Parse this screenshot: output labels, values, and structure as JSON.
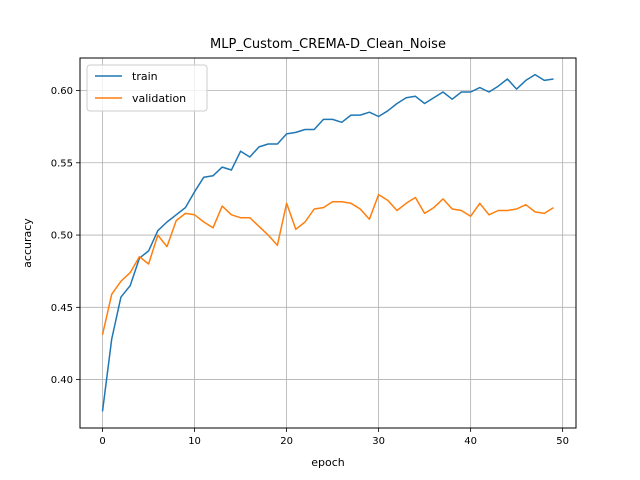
{
  "chart_data": {
    "type": "line",
    "title": "MLP_Custom_CREMA-D_Clean_Noise",
    "xlabel": "epoch",
    "ylabel": "accuracy",
    "xlim": [
      -2.45,
      51.45
    ],
    "ylim": [
      0.3665,
      0.6225
    ],
    "xticks": [
      0,
      10,
      20,
      30,
      40,
      50
    ],
    "yticks": [
      0.4,
      0.45,
      0.5,
      0.55,
      0.6
    ],
    "xtick_labels": [
      "0",
      "10",
      "20",
      "30",
      "40",
      "50"
    ],
    "ytick_labels": [
      "0.40",
      "0.45",
      "0.50",
      "0.55",
      "0.60"
    ],
    "grid": true,
    "legend_position": "upper-left",
    "x": [
      0,
      1,
      2,
      3,
      4,
      5,
      6,
      7,
      8,
      9,
      10,
      11,
      12,
      13,
      14,
      15,
      16,
      17,
      18,
      19,
      20,
      21,
      22,
      23,
      24,
      25,
      26,
      27,
      28,
      29,
      30,
      31,
      32,
      33,
      34,
      35,
      36,
      37,
      38,
      39,
      40,
      41,
      42,
      43,
      44,
      45,
      46,
      47,
      48,
      49
    ],
    "series": [
      {
        "name": "train",
        "color": "#1f77b4",
        "values": [
          0.378,
          0.428,
          0.457,
          0.465,
          0.484,
          0.489,
          0.503,
          0.509,
          0.514,
          0.519,
          0.53,
          0.54,
          0.541,
          0.547,
          0.545,
          0.558,
          0.554,
          0.561,
          0.563,
          0.563,
          0.57,
          0.571,
          0.573,
          0.573,
          0.58,
          0.58,
          0.578,
          0.583,
          0.583,
          0.585,
          0.582,
          0.586,
          0.591,
          0.595,
          0.596,
          0.591,
          0.595,
          0.599,
          0.594,
          0.599,
          0.599,
          0.602,
          0.599,
          0.603,
          0.608,
          0.601,
          0.607,
          0.611,
          0.607,
          0.608
        ]
      },
      {
        "name": "validation",
        "color": "#ff7f0e",
        "values": [
          0.431,
          0.459,
          0.468,
          0.474,
          0.485,
          0.48,
          0.5,
          0.492,
          0.51,
          0.515,
          0.514,
          0.509,
          0.505,
          0.52,
          0.514,
          0.512,
          0.512,
          0.506,
          0.5,
          0.493,
          0.522,
          0.504,
          0.509,
          0.518,
          0.519,
          0.523,
          0.523,
          0.522,
          0.518,
          0.511,
          0.528,
          0.524,
          0.517,
          0.522,
          0.526,
          0.515,
          0.519,
          0.525,
          0.518,
          0.517,
          0.513,
          0.522,
          0.514,
          0.517,
          0.517,
          0.518,
          0.521,
          0.516,
          0.515,
          0.519
        ]
      }
    ]
  }
}
